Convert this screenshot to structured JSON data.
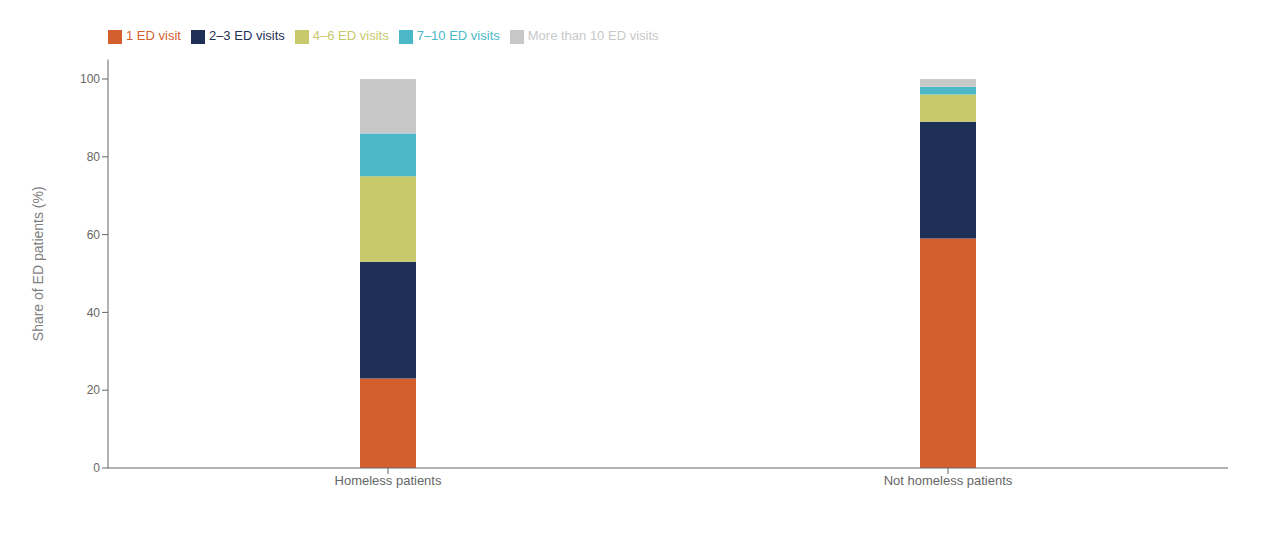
{
  "chart_data": {
    "type": "bar",
    "stacked": true,
    "categories": [
      "Homeless patients",
      "Not homeless patients"
    ],
    "series": [
      {
        "name": "1 ED visit",
        "color": "#D45F2E",
        "values": [
          23,
          59
        ]
      },
      {
        "name": "2–3 ED visits",
        "color": "#1F3057",
        "values": [
          30,
          30
        ]
      },
      {
        "name": "4–6 ED visits",
        "color": "#C8C96A",
        "values": [
          22,
          7
        ]
      },
      {
        "name": "7–10 ED visits",
        "color": "#4BB8C8",
        "values": [
          11,
          2
        ]
      },
      {
        "name": "More than 10 ED visits",
        "color": "#C8C8C8",
        "values": [
          14,
          2
        ]
      }
    ],
    "ylabel": "Share of ED patients (%)",
    "ylim": [
      0,
      105
    ],
    "yticks": [
      0,
      20,
      40,
      60,
      80,
      100
    ],
    "grid": false,
    "legend": "upper left"
  }
}
